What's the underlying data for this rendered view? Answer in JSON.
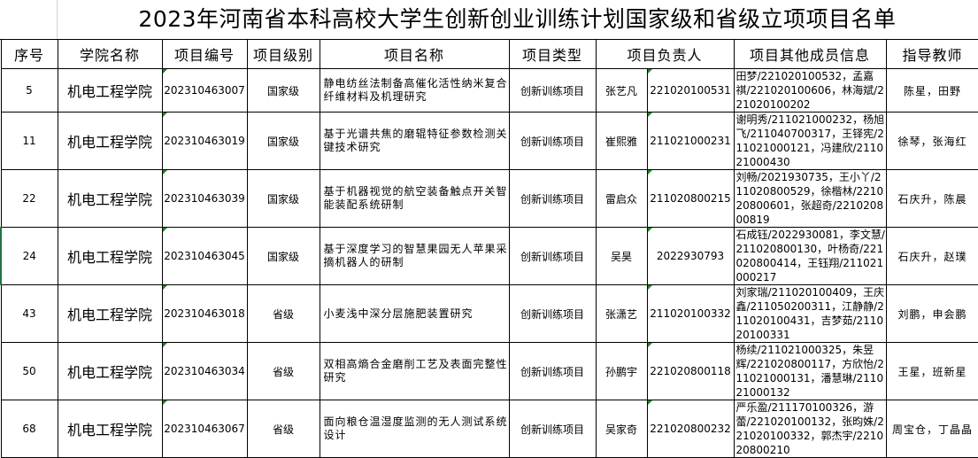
{
  "title": "2023年河南省本科高校大学生创新创业训练计划国家级和省级立项项目名单",
  "headers": [
    "序号",
    "学院名称",
    "项目编号",
    "项目级别",
    "项目名称",
    "项目类型",
    "项目负责人",
    "项目其他成员信息",
    "指导教师"
  ],
  "rows": [
    {
      "no": "5",
      "college": "机电工程学院",
      "code": "202310463007",
      "level": "国家级",
      "name": "静电纺丝法制备高催化活性纳米复合纤维材料及机理研究",
      "type": "创新训练项目",
      "leader": "张艺凡",
      "leader_id": "221020100531",
      "members": "田梦/221020100532，孟嘉祺/221020100606，林海斌/221020100202",
      "teachers": "陈星，田野"
    },
    {
      "no": "11",
      "college": "机电工程学院",
      "code": "202310463019",
      "level": "国家级",
      "name": "基于光谱共焦的磨辊特征参数检测关键技术研究",
      "type": "创新训练项目",
      "leader": "崔熙雅",
      "leader_id": "211021000231",
      "members": "谢明秀/211021000232，杨旭飞/211040700317，王铎宪/211021000121，冯建欣/211021000430",
      "teachers": "徐琴，张海红"
    },
    {
      "no": "22",
      "college": "机电工程学院",
      "code": "202310463039",
      "level": "国家级",
      "name": "基于机器视觉的航空装备触点开关智能装配系统研制",
      "type": "创新训练项目",
      "leader": "雷启众",
      "leader_id": "211020800215",
      "members": "刘畅/2021930735，王小丫/211020800529，徐楷林/221020800601，张超奇/221020800819",
      "teachers": "石庆升，陈晨"
    },
    {
      "no": "24",
      "college": "机电工程学院",
      "code": "202310463045",
      "level": "国家级",
      "name": "基于深度学习的智慧果园无人苹果采摘机器人的研制",
      "type": "创新训练项目",
      "leader": "吴昊",
      "leader_id": "2022930793",
      "members": "石成钰/2022930081，李文慧/211020800130，叶杨奇/221020800414，王钰翔/211021000217",
      "teachers": "石庆升，赵璞"
    },
    {
      "no": "43",
      "college": "机电工程学院",
      "code": "202310463018",
      "level": "省级",
      "name": "小麦浅中深分层施肥装置研究",
      "type": "创新训练项目",
      "leader": "张潇艺",
      "leader_id": "211020100332",
      "members": "刘家瑞/211020100409，王庆鑫/211050200311，江静静/211020100431，吉梦茹/211020100331",
      "teachers": "刘鹏，申会鹏"
    },
    {
      "no": "50",
      "college": "机电工程学院",
      "code": "202310463034",
      "level": "省级",
      "name": "双相高熵合金磨削工艺及表面完整性研究",
      "type": "创新训练项目",
      "leader": "孙鹏宇",
      "leader_id": "221020800118",
      "members": "杨续/211021000325，朱昱辉/221020800117，方欣怡/211021000131，潘慧琳/211021000132",
      "teachers": "王星，班新星"
    },
    {
      "no": "68",
      "college": "机电工程学院",
      "code": "202310463067",
      "level": "省级",
      "name": "面向粮仓温湿度监测的无人测试系统设计",
      "type": "创新训练项目",
      "leader": "吴家奇",
      "leader_id": "221020800232",
      "members": "严乐盈/211170100326，游蕾/221020100132，张昀姝/221020100332，郭杰宇/221020800210",
      "teachers": "周宝仓，丁晶晶"
    }
  ]
}
